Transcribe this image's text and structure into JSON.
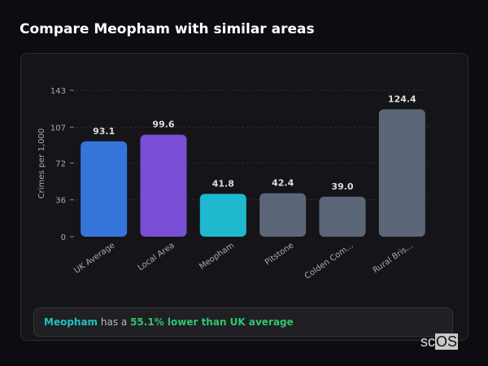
{
  "header": {
    "title": "Compare Meopham with similar areas"
  },
  "chart_data": {
    "type": "bar",
    "title": "",
    "ylabel": "Crimes per 1,000",
    "xlabel": "",
    "ylim": [
      0,
      143
    ],
    "yticks": [
      0,
      36,
      72,
      107,
      143
    ],
    "grid": true,
    "categories": [
      "UK Average",
      "Local Area",
      "Meopham",
      "Pitstone",
      "Colden Com...",
      "Rural Bris..."
    ],
    "values": [
      93.1,
      99.6,
      41.8,
      42.4,
      39.0,
      124.4
    ],
    "value_labels": [
      "93.1",
      "99.6",
      "41.8",
      "42.4",
      "39.0",
      "124.4"
    ],
    "colors": [
      "#3575d9",
      "#7a4fd6",
      "#1fb8cf",
      "#5b6678",
      "#5b6678",
      "#5b6678"
    ]
  },
  "footer": {
    "place": "Meopham",
    "middle": " has a ",
    "highlight": "55.1% lower than UK average"
  },
  "logo": {
    "text": "scOS"
  }
}
